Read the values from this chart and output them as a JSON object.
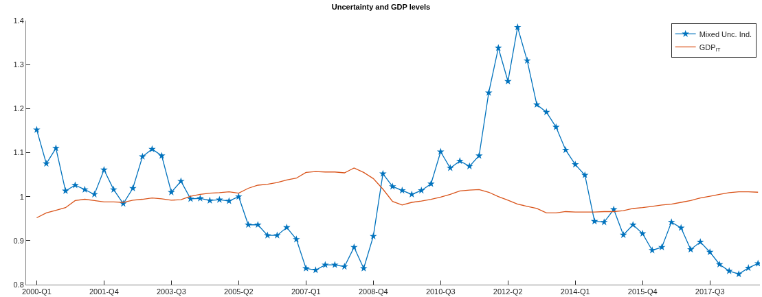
{
  "chart_data": {
    "type": "line",
    "title": "Uncertainty and GDP levels",
    "categories": [
      "2000-Q1",
      null,
      null,
      null,
      null,
      null,
      null,
      "2001-Q4",
      null,
      null,
      null,
      null,
      null,
      null,
      "2003-Q3",
      null,
      null,
      null,
      null,
      null,
      null,
      "2005-Q2",
      null,
      null,
      null,
      null,
      null,
      null,
      "2007-Q1",
      null,
      null,
      null,
      null,
      null,
      null,
      "2008-Q4",
      null,
      null,
      null,
      null,
      null,
      null,
      "2010-Q3",
      null,
      null,
      null,
      null,
      null,
      null,
      "2012-Q2",
      null,
      null,
      null,
      null,
      null,
      null,
      "2014-Q1",
      null,
      null,
      null,
      null,
      null,
      null,
      "2015-Q4",
      null,
      null,
      null,
      null,
      null,
      null,
      "2017-Q3",
      null,
      null,
      null,
      null,
      null
    ],
    "series": [
      {
        "name": "Mixed Unc. Ind.",
        "color": "#0072bd",
        "marker": "star",
        "values": [
          1.152,
          1.075,
          1.11,
          1.013,
          1.026,
          1.016,
          1.005,
          1.061,
          1.016,
          0.984,
          1.019,
          1.091,
          1.108,
          1.093,
          1.01,
          1.035,
          0.995,
          0.996,
          0.991,
          0.993,
          0.99,
          1.0,
          0.936,
          0.936,
          0.912,
          0.912,
          0.93,
          0.903,
          0.837,
          0.833,
          0.845,
          0.845,
          0.841,
          0.885,
          0.837,
          0.91,
          1.052,
          1.023,
          1.014,
          1.005,
          1.014,
          1.029,
          1.102,
          1.065,
          1.081,
          1.069,
          1.093,
          1.236,
          1.338,
          1.262,
          1.385,
          1.309,
          1.209,
          1.192,
          1.158,
          1.106,
          1.073,
          1.049,
          0.944,
          0.942,
          0.971,
          0.913,
          0.936,
          0.916,
          0.878,
          0.885,
          0.942,
          0.929,
          0.88,
          0.897,
          0.874,
          0.846,
          0.831,
          0.824,
          0.838,
          0.848
        ]
      },
      {
        "name": "GDP$_{IT}$",
        "color": "#d95319",
        "marker": "none",
        "values": [
          0.952,
          0.963,
          0.969,
          0.975,
          0.991,
          0.994,
          0.991,
          0.988,
          0.988,
          0.987,
          0.992,
          0.994,
          0.997,
          0.995,
          0.992,
          0.993,
          1.001,
          1.005,
          1.008,
          1.009,
          1.011,
          1.008,
          1.019,
          1.026,
          1.028,
          1.032,
          1.038,
          1.042,
          1.055,
          1.057,
          1.056,
          1.056,
          1.054,
          1.065,
          1.055,
          1.041,
          1.017,
          0.989,
          0.981,
          0.987,
          0.99,
          0.994,
          0.999,
          1.005,
          1.013,
          1.015,
          1.016,
          1.01,
          1.0,
          0.992,
          0.983,
          0.978,
          0.973,
          0.963,
          0.963,
          0.966,
          0.965,
          0.965,
          0.965,
          0.966,
          0.966,
          0.968,
          0.973,
          0.975,
          0.978,
          0.981,
          0.983,
          0.987,
          0.991,
          0.997,
          1.001,
          1.005,
          1.009,
          1.011,
          1.011,
          1.01
        ]
      }
    ],
    "ylim": [
      0.8,
      1.4
    ],
    "yticks": [
      0.8,
      0.9,
      1,
      1.1,
      1.2,
      1.3,
      1.4
    ],
    "legend": "top right",
    "line_style": "solid"
  }
}
